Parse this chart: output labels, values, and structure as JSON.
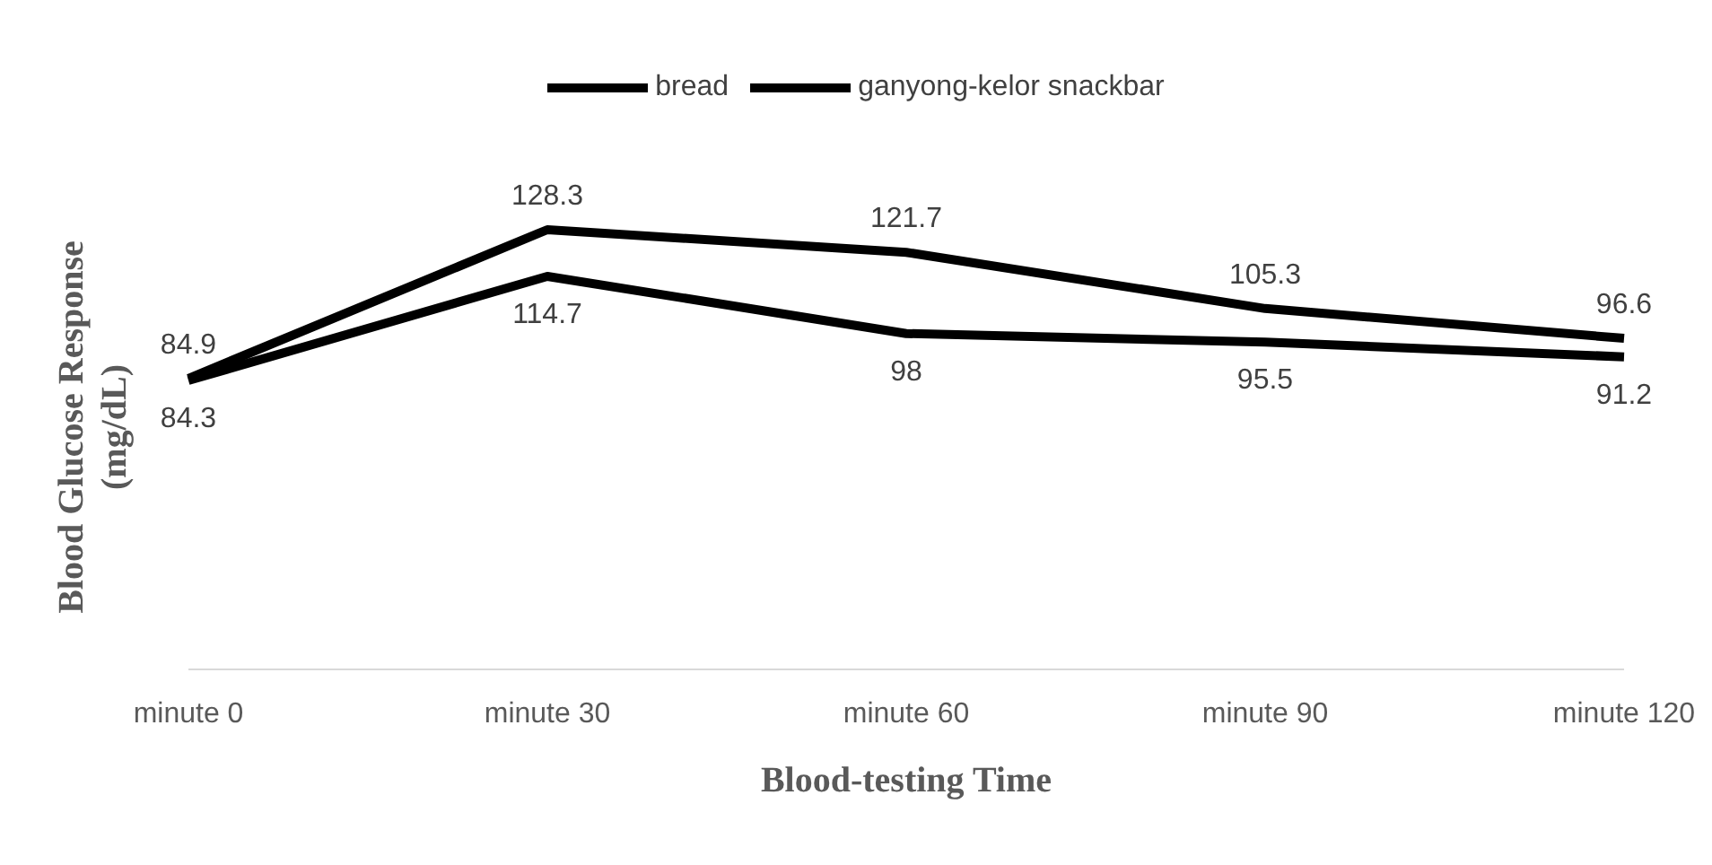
{
  "chart_data": {
    "type": "line",
    "xlabel": "Blood-testing Time",
    "ylabel": "Blood Glucose Response\n(mg/dL)",
    "categories": [
      "minute 0",
      "minute 30",
      "minute 60",
      "minute 90",
      "minute 120"
    ],
    "series": [
      {
        "name": "bread",
        "color": "#000000",
        "values": [
          84.9,
          128.3,
          121.7,
          105.3,
          96.6
        ]
      },
      {
        "name": "ganyong-kelor snackbar",
        "color": "#000000",
        "values": [
          84.3,
          114.7,
          98,
          95.5,
          91.2
        ]
      }
    ],
    "data_labels": true,
    "legend": "top",
    "marker": "none",
    "line_style": "solid"
  }
}
